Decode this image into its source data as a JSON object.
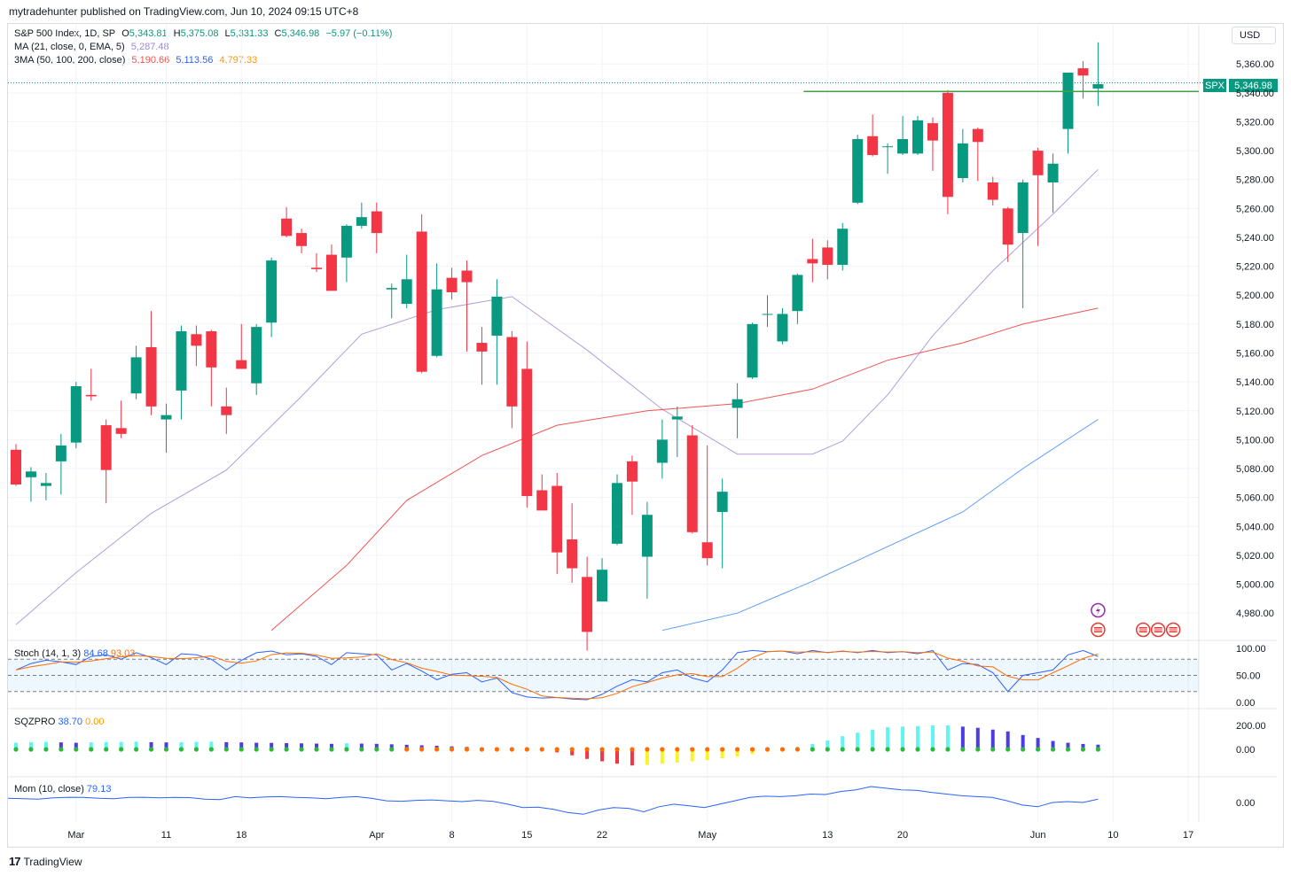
{
  "header": {
    "published": "mytradehunter published on TradingView.com, Jun 10, 2024 09:15 UTC+8",
    "footer_brand": "TradingView",
    "footer_mark": "17"
  },
  "legend": {
    "symbol": "S&P 500 Index, 1D, SP",
    "o_label": "O",
    "o": "5,343.81",
    "h_label": "H",
    "h": "5,375.08",
    "l_label": "L",
    "l": "5,331.33",
    "c_label": "C",
    "c": "5,346.98",
    "change": "−5.97 (−0.11%)",
    "ma_label": "MA (21, close, 0, EMA, 5)",
    "ma_value": "5,287.48",
    "tma_label": "3MA (50, 100, 200, close)",
    "tma_values": [
      "5,190.66",
      "5,113.56",
      "4,797.33"
    ]
  },
  "currency": "USD",
  "last_price": {
    "ticker": "SPX",
    "price": "5,346.98",
    "value": 5346.98
  },
  "horizontal_line": {
    "value": 5341,
    "from_date": "May 10",
    "to_date": "Jun 14",
    "color": "#43a047"
  },
  "colors": {
    "up": "#089981",
    "down": "#f23645",
    "ema21": "#b39ddb",
    "ma50": "#ef5350",
    "ma100": "#5b9cf6",
    "ma200": "#ff9800"
  },
  "price_ticks": [
    "5,360.00",
    "5,340.00",
    "5,320.00",
    "5,300.00",
    "5,280.00",
    "5,260.00",
    "5,240.00",
    "5,220.00",
    "5,200.00",
    "5,180.00",
    "5,160.00",
    "5,140.00",
    "5,120.00",
    "5,100.00",
    "5,080.00",
    "5,060.00",
    "5,040.00",
    "5,020.00",
    "5,000.00",
    "4,980.00"
  ],
  "time_ticks": [
    "Mar",
    "11",
    "18",
    "Apr",
    "8",
    "15",
    "22",
    "May",
    "13",
    "20",
    "Jun",
    "10",
    "17"
  ],
  "stoch": {
    "label": "Stoch (14, 1, 3)",
    "k": "84.68",
    "d": "93.03",
    "ticks": [
      "100.00",
      "50.00",
      "0.00"
    ]
  },
  "sqz": {
    "label": "SQZPRO",
    "v1": "38.70",
    "v2": "0.00",
    "ticks": [
      "200.00",
      "0.00"
    ]
  },
  "mom": {
    "label": "Mom (10, close)",
    "value": "79.13",
    "ticks": [
      "0.00"
    ]
  },
  "chart_data": {
    "type": "candlestick",
    "title": "S&P 500 Index, 1D, SP",
    "ylim": [
      4968,
      5382
    ],
    "candles": [
      {
        "d": "Feb 26",
        "o": 5093,
        "h": 5097,
        "l": 5068,
        "c": 5069
      },
      {
        "d": "Feb 27",
        "o": 5074,
        "h": 5081,
        "l": 5057,
        "c": 5078
      },
      {
        "d": "Feb 28",
        "o": 5068,
        "h": 5077,
        "l": 5058,
        "c": 5070
      },
      {
        "d": "Feb 29",
        "o": 5085,
        "h": 5104,
        "l": 5062,
        "c": 5096
      },
      {
        "d": "Mar 1",
        "o": 5098,
        "h": 5140,
        "l": 5094,
        "c": 5137
      },
      {
        "d": "Mar 4",
        "o": 5131,
        "h": 5149,
        "l": 5127,
        "c": 5130
      },
      {
        "d": "Mar 5",
        "o": 5110,
        "h": 5114,
        "l": 5056,
        "c": 5079
      },
      {
        "d": "Mar 6",
        "o": 5108,
        "h": 5127,
        "l": 5101,
        "c": 5104
      },
      {
        "d": "Mar 7",
        "o": 5132,
        "h": 5165,
        "l": 5128,
        "c": 5157
      },
      {
        "d": "Mar 8",
        "o": 5164,
        "h": 5189,
        "l": 5117,
        "c": 5123
      },
      {
        "d": "Mar 11",
        "o": 5114,
        "h": 5125,
        "l": 5091,
        "c": 5117
      },
      {
        "d": "Mar 12",
        "o": 5134,
        "h": 5179,
        "l": 5114,
        "c": 5175
      },
      {
        "d": "Mar 13",
        "o": 5173,
        "h": 5179,
        "l": 5151,
        "c": 5165
      },
      {
        "d": "Mar 14",
        "o": 5175,
        "h": 5176,
        "l": 5123,
        "c": 5150
      },
      {
        "d": "Mar 15",
        "o": 5123,
        "h": 5136,
        "l": 5104,
        "c": 5117
      },
      {
        "d": "Mar 18",
        "o": 5155,
        "h": 5180,
        "l": 5149,
        "c": 5149
      },
      {
        "d": "Mar 19",
        "o": 5139,
        "h": 5180,
        "l": 5131,
        "c": 5178
      },
      {
        "d": "Mar 20",
        "o": 5181,
        "h": 5226,
        "l": 5171,
        "c": 5224
      },
      {
        "d": "Mar 21",
        "o": 5253,
        "h": 5261,
        "l": 5240,
        "c": 5241
      },
      {
        "d": "Mar 22",
        "o": 5243,
        "h": 5246,
        "l": 5229,
        "c": 5234
      },
      {
        "d": "Mar 25",
        "o": 5219,
        "h": 5229,
        "l": 5216,
        "c": 5218
      },
      {
        "d": "Mar 26",
        "o": 5228,
        "h": 5235,
        "l": 5203,
        "c": 5203
      },
      {
        "d": "Mar 27",
        "o": 5226,
        "h": 5249,
        "l": 5209,
        "c": 5248
      },
      {
        "d": "Mar 28",
        "o": 5248,
        "h": 5264,
        "l": 5246,
        "c": 5254
      },
      {
        "d": "Apr 1",
        "o": 5258,
        "h": 5264,
        "l": 5229,
        "c": 5243
      },
      {
        "d": "Apr 2",
        "o": 5204,
        "h": 5208,
        "l": 5184,
        "c": 5205
      },
      {
        "d": "Apr 3",
        "o": 5194,
        "h": 5228,
        "l": 5191,
        "c": 5211
      },
      {
        "d": "Apr 4",
        "o": 5244,
        "h": 5256,
        "l": 5146,
        "c": 5147
      },
      {
        "d": "Apr 5",
        "o": 5158,
        "h": 5222,
        "l": 5157,
        "c": 5204
      },
      {
        "d": "Apr 8",
        "o": 5212,
        "h": 5219,
        "l": 5197,
        "c": 5202
      },
      {
        "d": "Apr 9",
        "o": 5217,
        "h": 5224,
        "l": 5161,
        "c": 5209
      },
      {
        "d": "Apr 10",
        "o": 5167,
        "h": 5178,
        "l": 5138,
        "c": 5161
      },
      {
        "d": "Apr 11",
        "o": 5172,
        "h": 5211,
        "l": 5138,
        "c": 5199
      },
      {
        "d": "Apr 12",
        "o": 5171,
        "h": 5175,
        "l": 5108,
        "c": 5123
      },
      {
        "d": "Apr 15",
        "o": 5149,
        "h": 5168,
        "l": 5053,
        "c": 5061
      },
      {
        "d": "Apr 16",
        "o": 5065,
        "h": 5076,
        "l": 5052,
        "c": 5051
      },
      {
        "d": "Apr 17",
        "o": 5068,
        "h": 5077,
        "l": 5007,
        "c": 5022
      },
      {
        "d": "Apr 18",
        "o": 5031,
        "h": 5056,
        "l": 5001,
        "c": 5011
      },
      {
        "d": "Apr 19",
        "o": 5005,
        "h": 5019,
        "l": 4954,
        "c": 4967
      },
      {
        "d": "Apr 22",
        "o": 4988,
        "h": 5018,
        "l": 4988,
        "c": 5010
      },
      {
        "d": "Apr 23",
        "o": 5028,
        "h": 5076,
        "l": 5027,
        "c": 5070
      },
      {
        "d": "Apr 24",
        "o": 5085,
        "h": 5089,
        "l": 5048,
        "c": 5071
      },
      {
        "d": "Apr 25",
        "o": 5019,
        "h": 5057,
        "l": 4990,
        "c": 5048
      },
      {
        "d": "Apr 26",
        "o": 5084,
        "h": 5114,
        "l": 5073,
        "c": 5100
      },
      {
        "d": "Apr 29",
        "o": 5114,
        "h": 5123,
        "l": 5088,
        "c": 5116
      },
      {
        "d": "Apr 30",
        "o": 5103,
        "h": 5110,
        "l": 5035,
        "c": 5036
      },
      {
        "d": "May 1",
        "o": 5029,
        "h": 5096,
        "l": 5013,
        "c": 5018
      },
      {
        "d": "May 2",
        "o": 5050,
        "h": 5073,
        "l": 5011,
        "c": 5064
      },
      {
        "d": "May 3",
        "o": 5122,
        "h": 5139,
        "l": 5101,
        "c": 5128
      },
      {
        "d": "May 6",
        "o": 5143,
        "h": 5181,
        "l": 5142,
        "c": 5180
      },
      {
        "d": "May 7",
        "o": 5187,
        "h": 5200,
        "l": 5178,
        "c": 5187
      },
      {
        "d": "May 8",
        "o": 5168,
        "h": 5191,
        "l": 5166,
        "c": 5187
      },
      {
        "d": "May 9",
        "o": 5189,
        "h": 5215,
        "l": 5180,
        "c": 5214
      },
      {
        "d": "May 10",
        "o": 5225,
        "h": 5239,
        "l": 5209,
        "c": 5222
      },
      {
        "d": "May 13",
        "o": 5233,
        "h": 5238,
        "l": 5211,
        "c": 5221
      },
      {
        "d": "May 14",
        "o": 5221,
        "h": 5250,
        "l": 5217,
        "c": 5246
      },
      {
        "d": "May 15",
        "o": 5264,
        "h": 5311,
        "l": 5263,
        "c": 5308
      },
      {
        "d": "May 16",
        "o": 5310,
        "h": 5325,
        "l": 5296,
        "c": 5297
      },
      {
        "d": "May 17",
        "o": 5303,
        "h": 5305,
        "l": 5284,
        "c": 5303
      },
      {
        "d": "May 20",
        "o": 5298,
        "h": 5324,
        "l": 5297,
        "c": 5308
      },
      {
        "d": "May 21",
        "o": 5298,
        "h": 5324,
        "l": 5297,
        "c": 5321
      },
      {
        "d": "May 22",
        "o": 5319,
        "h": 5323,
        "l": 5286,
        "c": 5307
      },
      {
        "d": "May 23",
        "o": 5340,
        "h": 5342,
        "l": 5256,
        "c": 5268
      },
      {
        "d": "May 24",
        "o": 5281,
        "h": 5315,
        "l": 5278,
        "c": 5305
      },
      {
        "d": "May 28",
        "o": 5315,
        "h": 5316,
        "l": 5279,
        "c": 5306
      },
      {
        "d": "May 29",
        "o": 5278,
        "h": 5282,
        "l": 5262,
        "c": 5266
      },
      {
        "d": "May 30",
        "o": 5260,
        "h": 5261,
        "l": 5223,
        "c": 5235
      },
      {
        "d": "May 31",
        "o": 5243,
        "h": 5280,
        "l": 5191,
        "c": 5278
      },
      {
        "d": "Jun 3",
        "o": 5300,
        "h": 5302,
        "l": 5234,
        "c": 5283
      },
      {
        "d": "Jun 4",
        "o": 5278,
        "h": 5298,
        "l": 5257,
        "c": 5291
      },
      {
        "d": "Jun 5",
        "o": 5315,
        "h": 5354,
        "l": 5298,
        "c": 5354
      },
      {
        "d": "Jun 6",
        "o": 5357,
        "h": 5362,
        "l": 5336,
        "c": 5352
      },
      {
        "d": "Jun 7",
        "o": 5343,
        "h": 5375,
        "l": 5331,
        "c": 5346
      }
    ],
    "ema21": [
      {
        "d": "Feb 26",
        "v": 4972
      },
      {
        "d": "Mar 1",
        "v": 5008
      },
      {
        "d": "Mar 8",
        "v": 5049
      },
      {
        "d": "Mar 15",
        "v": 5079
      },
      {
        "d": "Mar 22",
        "v": 5130
      },
      {
        "d": "Mar 28",
        "v": 5173
      },
      {
        "d": "Apr 5",
        "v": 5190
      },
      {
        "d": "Apr 12",
        "v": 5199
      },
      {
        "d": "Apr 19",
        "v": 5162
      },
      {
        "d": "Apr 26",
        "v": 5121
      },
      {
        "d": "May 3",
        "v": 5090
      },
      {
        "d": "May 10",
        "v": 5090
      },
      {
        "d": "May 14",
        "v": 5099
      },
      {
        "d": "May 17",
        "v": 5131
      },
      {
        "d": "May 22",
        "v": 5172
      },
      {
        "d": "May 29",
        "v": 5217
      },
      {
        "d": "Jun 4",
        "v": 5256
      },
      {
        "d": "Jun 7",
        "v": 5287
      }
    ],
    "ma50": [
      {
        "d": "Mar 20",
        "v": 4968
      },
      {
        "d": "Mar 27",
        "v": 5013
      },
      {
        "d": "Apr 3",
        "v": 5058
      },
      {
        "d": "Apr 10",
        "v": 5089
      },
      {
        "d": "Apr 17",
        "v": 5110
      },
      {
        "d": "Apr 25",
        "v": 5120
      },
      {
        "d": "May 3",
        "v": 5125
      },
      {
        "d": "May 10",
        "v": 5135
      },
      {
        "d": "May 17",
        "v": 5155
      },
      {
        "d": "May 24",
        "v": 5167
      },
      {
        "d": "May 31",
        "v": 5180
      },
      {
        "d": "Jun 7",
        "v": 5191
      }
    ],
    "ma100": [
      {
        "d": "Apr 26",
        "v": 4968
      },
      {
        "d": "May 3",
        "v": 4980
      },
      {
        "d": "May 10",
        "v": 5002
      },
      {
        "d": "May 17",
        "v": 5026
      },
      {
        "d": "May 24",
        "v": 5050
      },
      {
        "d": "May 31",
        "v": 5080
      },
      {
        "d": "Jun 7",
        "v": 5114
      }
    ]
  }
}
